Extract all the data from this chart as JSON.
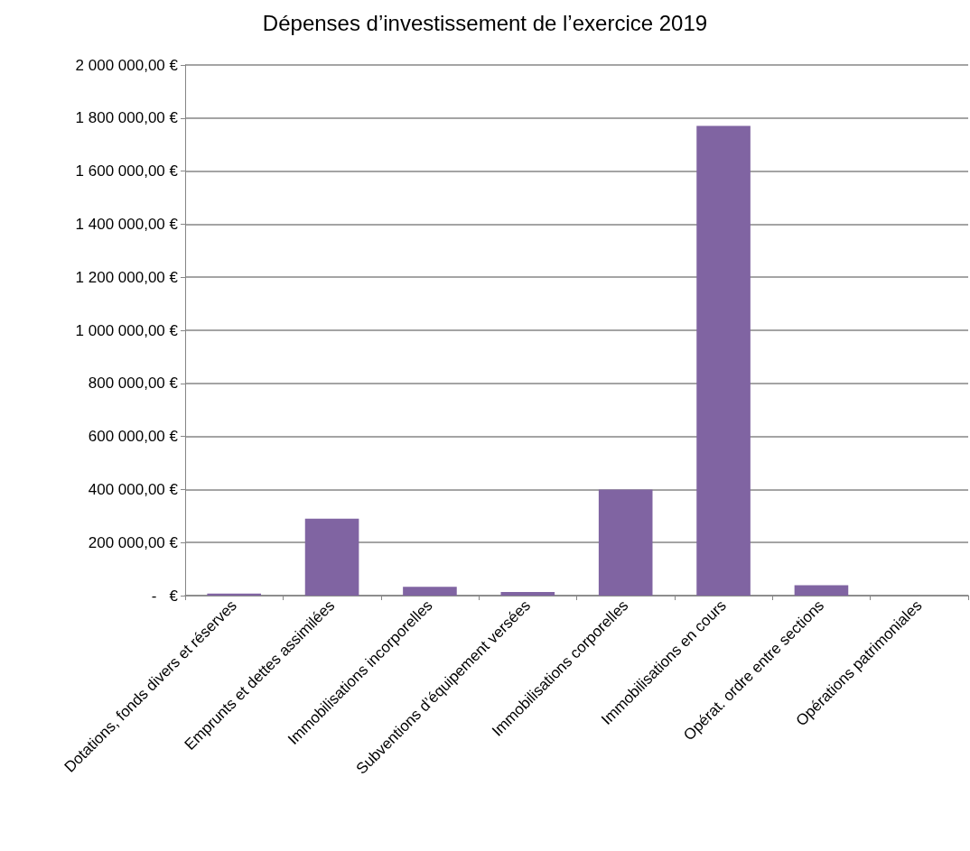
{
  "chart_data": {
    "type": "bar",
    "title": "Dépenses d’investissement de l’exercice 2019",
    "categories": [
      "Dotations, fonds divers et réserves",
      "Emprunts et dettes assimilées",
      "Immobilisations incorporelles",
      "Subventions d’équipement versées",
      "Immobilisations corporelles",
      "Immobilisations en cours",
      "Opérat. ordre entre sections",
      "Opérations patrimoniales"
    ],
    "values": [
      8000,
      290000,
      33000,
      14000,
      400000,
      1770000,
      39000,
      0
    ],
    "color": "#8064a2",
    "ylim": [
      0,
      2000000
    ],
    "yticks": [
      {
        "value": 0,
        "label": "-   €"
      },
      {
        "value": 200000,
        "label": "200 000,00 €"
      },
      {
        "value": 400000,
        "label": "400 000,00 €"
      },
      {
        "value": 600000,
        "label": "600 000,00 €"
      },
      {
        "value": 800000,
        "label": "800 000,00 €"
      },
      {
        "value": 1000000,
        "label": "1 000 000,00 €"
      },
      {
        "value": 1200000,
        "label": "1 200 000,00 €"
      },
      {
        "value": 1400000,
        "label": "1 400 000,00 €"
      },
      {
        "value": 1600000,
        "label": "1 600 000,00 €"
      },
      {
        "value": 1800000,
        "label": "1 800 000,00 €"
      },
      {
        "value": 2000000,
        "label": "2 000 000,00 €"
      }
    ],
    "grid": "y"
  }
}
